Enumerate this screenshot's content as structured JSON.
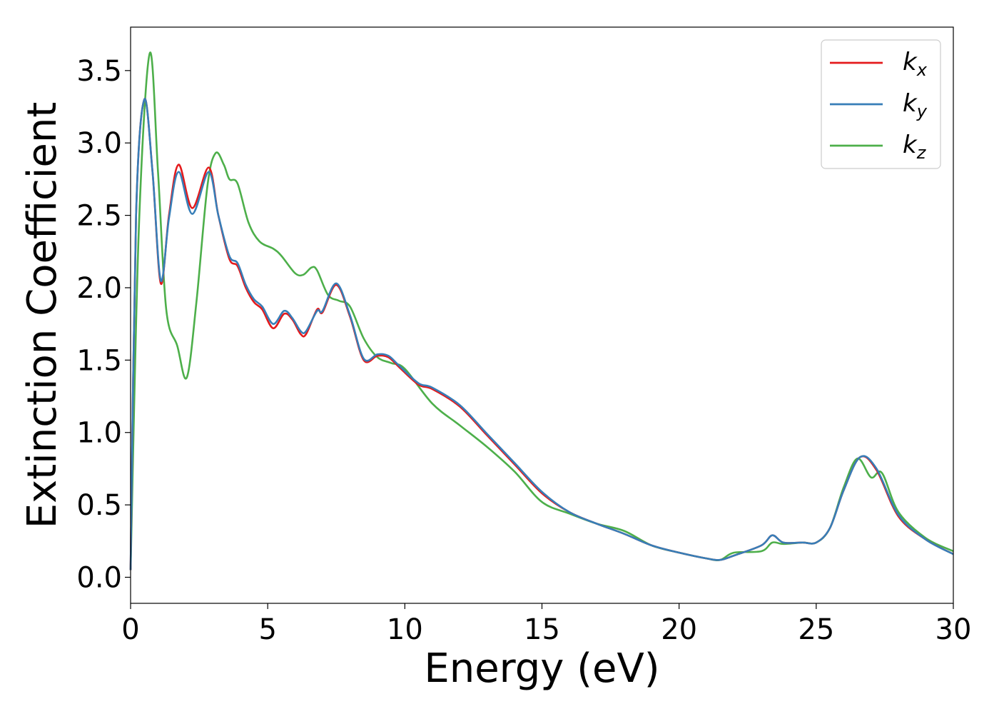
{
  "chart_data": {
    "type": "line",
    "title": "",
    "xlabel": "Energy (eV)",
    "ylabel": "Extinction Coefficient",
    "xlim": [
      0,
      30
    ],
    "ylim": [
      -0.18,
      3.8
    ],
    "xticks": [
      0,
      5,
      10,
      15,
      20,
      25,
      30
    ],
    "xtick_labels": [
      "0",
      "5",
      "10",
      "15",
      "20",
      "25",
      "30"
    ],
    "yticks": [
      0.0,
      0.5,
      1.0,
      1.5,
      2.0,
      2.5,
      3.0,
      3.5
    ],
    "ytick_labels": [
      "0.0",
      "0.5",
      "1.0",
      "1.5",
      "2.0",
      "2.5",
      "3.0",
      "3.5"
    ],
    "grid": false,
    "legend_position": "top-right",
    "series": [
      {
        "name": "k",
        "subscript": "x",
        "color": "#e41a1c",
        "x": [
          0,
          0.2,
          0.5,
          0.8,
          1.1,
          1.4,
          1.75,
          2.25,
          2.85,
          3.2,
          3.6,
          3.9,
          4.2,
          4.5,
          4.8,
          5.2,
          5.6,
          5.9,
          6.2,
          6.4,
          6.8,
          7.0,
          7.5,
          8.0,
          8.5,
          9.0,
          9.4,
          9.8,
          10.5,
          11.0,
          12.0,
          13.0,
          14.0,
          15.0,
          16.0,
          17.0,
          18.0,
          19.0,
          20.0,
          21.0,
          21.5,
          22.0,
          23.0,
          23.4,
          23.8,
          24.5,
          25.0,
          25.5,
          26.0,
          26.6,
          27.2,
          28.0,
          29.0,
          30.0
        ],
        "y": [
          0.05,
          2.5,
          3.3,
          2.8,
          2.03,
          2.5,
          2.85,
          2.55,
          2.83,
          2.5,
          2.2,
          2.15,
          2.0,
          1.9,
          1.85,
          1.72,
          1.82,
          1.78,
          1.68,
          1.68,
          1.85,
          1.83,
          2.02,
          1.8,
          1.5,
          1.53,
          1.52,
          1.45,
          1.33,
          1.3,
          1.18,
          0.98,
          0.78,
          0.58,
          0.45,
          0.37,
          0.3,
          0.22,
          0.17,
          0.13,
          0.12,
          0.15,
          0.22,
          0.29,
          0.24,
          0.24,
          0.24,
          0.34,
          0.6,
          0.83,
          0.74,
          0.42,
          0.26,
          0.16
        ]
      },
      {
        "name": "k",
        "subscript": "y",
        "color": "#377eb8",
        "x": [
          0,
          0.2,
          0.5,
          0.8,
          1.1,
          1.4,
          1.75,
          2.25,
          2.85,
          3.2,
          3.6,
          3.9,
          4.2,
          4.5,
          4.8,
          5.2,
          5.6,
          5.9,
          6.2,
          6.4,
          6.8,
          7.0,
          7.5,
          8.0,
          8.5,
          9.0,
          9.4,
          9.8,
          10.5,
          11.0,
          12.0,
          13.0,
          14.0,
          15.0,
          16.0,
          17.0,
          18.0,
          19.0,
          20.0,
          21.0,
          21.5,
          22.0,
          23.0,
          23.4,
          23.8,
          24.5,
          25.0,
          25.5,
          26.0,
          26.6,
          27.2,
          28.0,
          29.0,
          30.0
        ],
        "y": [
          0.05,
          2.5,
          3.3,
          2.8,
          2.05,
          2.48,
          2.8,
          2.51,
          2.8,
          2.5,
          2.22,
          2.17,
          2.02,
          1.92,
          1.87,
          1.75,
          1.84,
          1.79,
          1.7,
          1.7,
          1.84,
          1.84,
          2.03,
          1.81,
          1.51,
          1.54,
          1.53,
          1.46,
          1.34,
          1.31,
          1.19,
          0.99,
          0.79,
          0.59,
          0.45,
          0.37,
          0.3,
          0.22,
          0.17,
          0.13,
          0.12,
          0.15,
          0.22,
          0.29,
          0.24,
          0.24,
          0.24,
          0.34,
          0.6,
          0.83,
          0.75,
          0.43,
          0.26,
          0.16
        ]
      },
      {
        "name": "k",
        "subscript": "z",
        "color": "#4daf4a",
        "x": [
          0,
          0.3,
          0.7,
          1.0,
          1.3,
          1.7,
          2.05,
          2.4,
          2.8,
          3.1,
          3.4,
          3.6,
          3.9,
          4.3,
          4.7,
          5.2,
          5.5,
          6.0,
          6.3,
          6.6,
          6.8,
          7.2,
          7.6,
          8.0,
          8.5,
          9.0,
          9.5,
          10.0,
          11.0,
          12.0,
          13.0,
          14.0,
          15.0,
          16.0,
          17.0,
          18.0,
          19.0,
          20.0,
          21.0,
          21.5,
          22.0,
          23.0,
          23.4,
          23.8,
          24.5,
          25.0,
          25.5,
          26.0,
          26.5,
          27.0,
          27.4,
          28.0,
          29.0,
          30.0
        ],
        "y": [
          0.05,
          2.4,
          3.62,
          2.8,
          1.85,
          1.6,
          1.38,
          1.9,
          2.7,
          2.93,
          2.85,
          2.75,
          2.72,
          2.45,
          2.32,
          2.27,
          2.22,
          2.1,
          2.09,
          2.14,
          2.12,
          1.95,
          1.91,
          1.87,
          1.65,
          1.52,
          1.48,
          1.44,
          1.2,
          1.05,
          0.9,
          0.73,
          0.52,
          0.44,
          0.37,
          0.32,
          0.22,
          0.17,
          0.13,
          0.12,
          0.17,
          0.18,
          0.24,
          0.23,
          0.24,
          0.24,
          0.34,
          0.62,
          0.82,
          0.69,
          0.72,
          0.45,
          0.27,
          0.18
        ]
      }
    ]
  }
}
